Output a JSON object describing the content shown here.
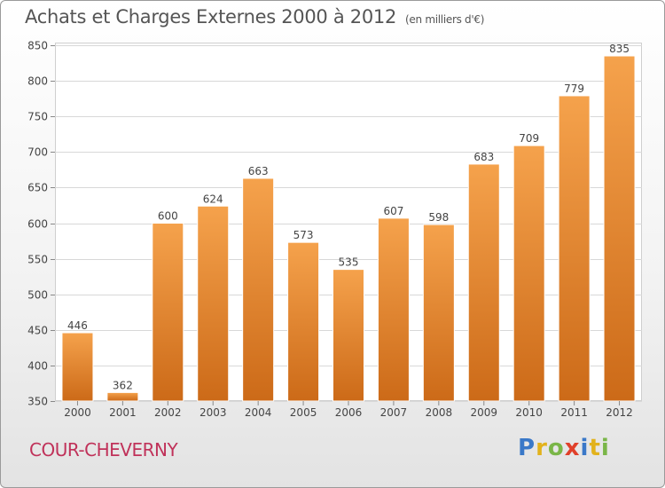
{
  "header": {
    "title": "Achats et Charges Externes 2000 à 2012",
    "subtitle": "(en milliers d'€)"
  },
  "footer": {
    "commune": "COUR-CHEVERNY",
    "logo_text": "Proxiti"
  },
  "colors": {
    "bar_top": "#f5a24c",
    "bar_bottom": "#cc6a18",
    "grid": "#d8d8d8",
    "title": "#555555",
    "commune": "#c0325a"
  },
  "chart_data": {
    "type": "bar",
    "title": "Achats et Charges Externes 2000 à 2012",
    "subtitle": "(en milliers d'€)",
    "categories": [
      "2000",
      "2001",
      "2002",
      "2003",
      "2004",
      "2005",
      "2006",
      "2007",
      "2008",
      "2009",
      "2010",
      "2011",
      "2012"
    ],
    "values": [
      446,
      362,
      600,
      624,
      663,
      573,
      535,
      607,
      598,
      683,
      709,
      779,
      835
    ],
    "ylim": [
      350,
      850
    ],
    "yticks": [
      350,
      400,
      450,
      500,
      550,
      600,
      650,
      700,
      750,
      800,
      850
    ],
    "grid": true,
    "data_labels": true
  }
}
